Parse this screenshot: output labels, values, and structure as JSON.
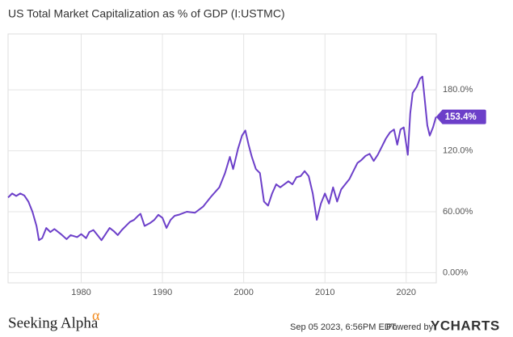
{
  "chart_data": {
    "type": "line",
    "title": "US Total Market Capitalization as % of GDP (I:USTMC)",
    "x": [
      1971.0,
      1971.5,
      1972.0,
      1972.5,
      1973.0,
      1973.5,
      1974.0,
      1974.5,
      1974.8,
      1975.2,
      1975.7,
      1976.2,
      1976.7,
      1977.5,
      1978.2,
      1978.7,
      1979.5,
      1980.0,
      1980.6,
      1981.0,
      1981.5,
      1982.0,
      1982.5,
      1983.0,
      1983.5,
      1984.0,
      1984.5,
      1985.0,
      1985.5,
      1986.0,
      1986.5,
      1987.0,
      1987.3,
      1987.8,
      1988.5,
      1989.0,
      1989.5,
      1990.0,
      1990.5,
      1991.0,
      1991.5,
      1992.0,
      1993.0,
      1994.0,
      1995.0,
      1996.0,
      1997.0,
      1997.7,
      1998.3,
      1998.7,
      1999.3,
      1999.8,
      2000.2,
      2000.6,
      2001.0,
      2001.5,
      2002.0,
      2002.5,
      2003.0,
      2003.5,
      2004.0,
      2004.5,
      2005.0,
      2005.5,
      2006.0,
      2006.5,
      2007.0,
      2007.5,
      2008.0,
      2008.5,
      2009.0,
      2009.5,
      2010.0,
      2010.5,
      2011.0,
      2011.5,
      2012.0,
      2012.5,
      2013.0,
      2013.5,
      2014.0,
      2014.5,
      2015.0,
      2015.5,
      2016.0,
      2016.5,
      2017.0,
      2017.5,
      2018.0,
      2018.5,
      2018.9,
      2019.3,
      2019.7,
      2020.2,
      2020.5,
      2020.8,
      2021.3,
      2021.7,
      2022.0,
      2022.3,
      2022.6,
      2022.9,
      2023.3,
      2023.67
    ],
    "values": [
      74,
      78,
      75.5,
      78,
      76,
      70,
      60,
      46,
      32,
      34,
      44,
      40,
      43,
      38,
      33,
      37,
      35,
      38,
      34,
      40,
      42,
      37,
      32,
      38,
      44,
      41,
      37,
      42,
      46,
      50,
      52,
      56,
      58,
      46,
      49,
      52,
      57,
      54,
      44,
      52,
      56,
      57,
      60,
      59,
      65,
      75,
      84,
      98,
      114,
      102,
      122,
      135,
      140,
      126,
      114,
      102,
      98,
      70,
      66,
      78,
      87,
      84,
      87,
      90,
      87,
      94,
      95,
      100,
      95,
      78,
      52,
      68,
      78,
      68,
      84,
      70,
      82,
      87,
      92,
      100,
      108,
      111,
      115,
      117,
      110,
      116,
      124,
      132,
      138,
      141,
      126,
      141,
      143,
      116,
      157,
      177,
      183,
      191,
      193,
      169,
      145,
      135,
      143,
      153.4
    ],
    "value_labels": [
      null,
      null,
      null,
      null,
      null,
      null,
      null,
      null,
      null,
      null,
      null,
      null,
      null,
      null,
      null,
      null,
      null,
      null,
      null,
      null,
      null,
      null,
      null,
      null,
      null,
      null,
      null,
      null,
      null,
      null,
      null,
      null,
      null,
      null,
      null,
      null,
      null,
      null,
      null,
      null,
      null,
      null,
      null,
      null,
      null,
      null,
      null,
      null,
      null,
      null,
      null,
      null,
      null,
      null,
      null,
      null,
      null,
      null,
      null,
      null,
      null,
      null,
      null,
      null,
      null,
      null,
      null,
      null,
      null,
      null,
      null,
      null,
      null,
      null,
      null,
      null,
      null,
      null,
      null,
      null,
      null,
      null,
      null,
      null,
      null,
      null,
      null,
      null,
      null,
      null,
      null,
      null,
      null,
      null,
      null,
      null,
      null,
      null,
      null,
      null,
      null,
      null,
      null,
      "153.4%"
    ],
    "color": "#6c3fc9",
    "xlim": [
      1971,
      2023.7
    ],
    "xticks": [
      1980,
      1990,
      2000,
      2010,
      2020
    ],
    "ylim": [
      -10,
      235
    ],
    "yticks": [
      {
        "value": 0,
        "label": "0.00%"
      },
      {
        "value": 60,
        "label": "60.00%"
      },
      {
        "value": 120,
        "label": "120.0%"
      },
      {
        "value": 180,
        "label": "180.0%"
      }
    ],
    "grid": true
  },
  "footer": {
    "brand": "Seeking Alpha",
    "brand_mark": "α",
    "timestamp": "Sep 05 2023, 6:56PM EDT.",
    "powered": "Powered by",
    "provider": "YCHARTS"
  }
}
